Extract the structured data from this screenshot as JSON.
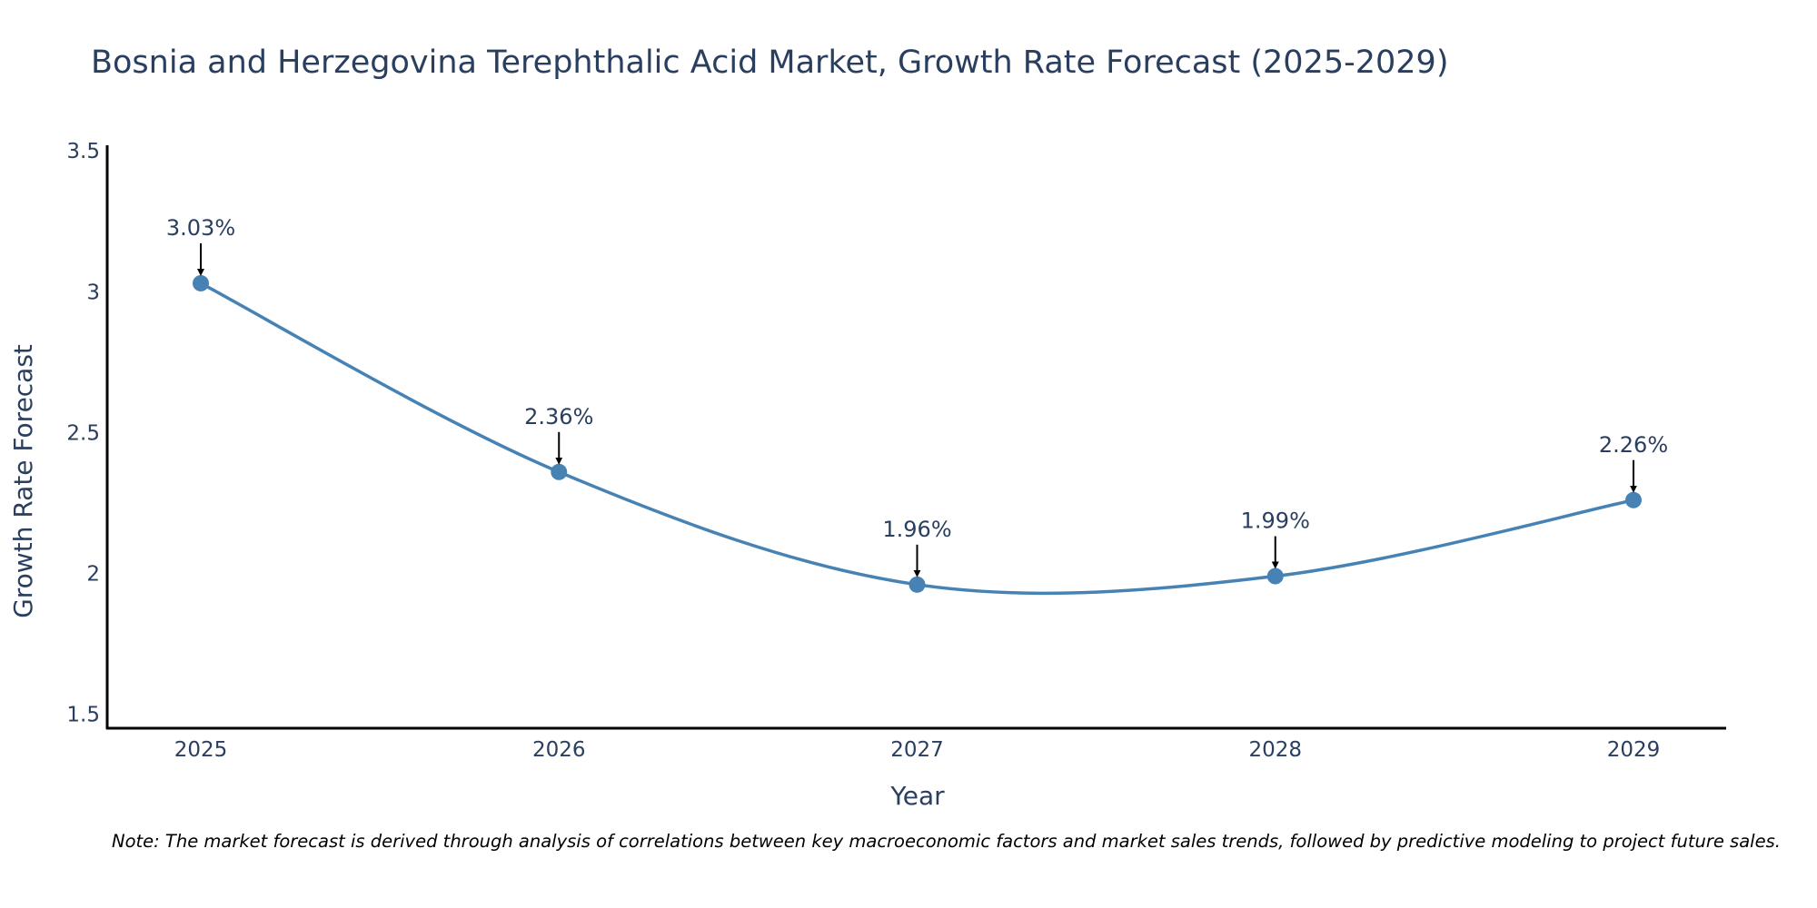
{
  "chart_data": {
    "type": "line",
    "title": "Bosnia and Herzegovina Terephthalic Acid Market, Growth Rate Forecast (2025-2029)",
    "xlabel": "Year",
    "ylabel": "Growth Rate Forecast",
    "categories": [
      "2025",
      "2026",
      "2027",
      "2028",
      "2029"
    ],
    "series": [
      {
        "name": "Growth Rate Forecast",
        "values": [
          3.03,
          2.36,
          1.96,
          1.99,
          2.26
        ]
      }
    ],
    "data_labels": [
      "3.03%",
      "2.36%",
      "1.96%",
      "1.99%",
      "2.26%"
    ],
    "ylim": [
      1.45,
      3.52
    ],
    "yticks": [
      1.5,
      2,
      2.5,
      3,
      3.5
    ],
    "ytick_labels": [
      "1.5",
      "2",
      "2.5",
      "3",
      "3.5"
    ],
    "line_color": "#4682b4",
    "line_shape": "spline",
    "grid": false
  },
  "note": "Note: The market forecast is derived through analysis of correlations between key macroeconomic factors and market sales trends, followed by predictive modeling to project future sales."
}
